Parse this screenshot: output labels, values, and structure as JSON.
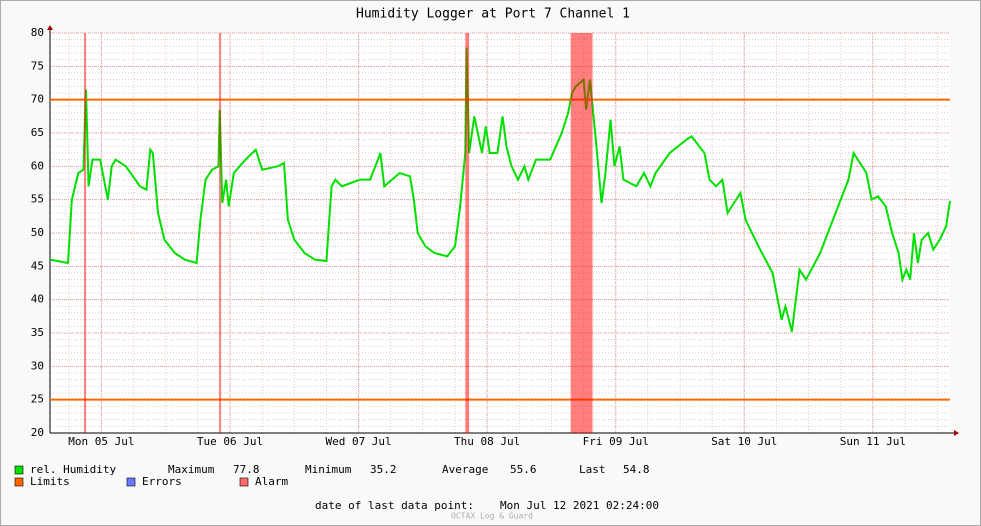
{
  "chart_data": {
    "type": "line",
    "title": "Humidity Logger at Port 7 Channel 1",
    "xlim": [
      5.1,
      12.1
    ],
    "xticks": [
      {
        "value": 5.5,
        "label": "Mon 05 Jul"
      },
      {
        "value": 6.5,
        "label": "Tue 06 Jul"
      },
      {
        "value": 7.5,
        "label": "Wed 07 Jul"
      },
      {
        "value": 8.5,
        "label": "Thu 08 Jul"
      },
      {
        "value": 9.5,
        "label": "Fri 09 Jul"
      },
      {
        "value": 10.5,
        "label": "Sat 10 Jul"
      },
      {
        "value": 11.5,
        "label": "Sun 11 Jul"
      }
    ],
    "ylim": [
      20,
      80
    ],
    "yticks": [
      20,
      25,
      30,
      35,
      40,
      45,
      50,
      55,
      60,
      65,
      70,
      75,
      80
    ],
    "grid": true,
    "series": [
      {
        "name": "rel. Humidity",
        "color": "#00e000",
        "x": [
          5.1,
          5.24,
          5.27,
          5.32,
          5.36,
          5.38,
          5.4,
          5.43,
          5.49,
          5.55,
          5.58,
          5.61,
          5.69,
          5.8,
          5.85,
          5.88,
          5.9,
          5.94,
          5.99,
          6.07,
          6.15,
          6.24,
          6.27,
          6.31,
          6.36,
          6.41,
          6.42,
          6.44,
          6.47,
          6.49,
          6.53,
          6.62,
          6.7,
          6.75,
          6.87,
          6.92,
          6.95,
          7.0,
          7.08,
          7.16,
          7.25,
          7.29,
          7.32,
          7.37,
          7.51,
          7.59,
          7.67,
          7.7,
          7.76,
          7.82,
          7.9,
          7.93,
          7.96,
          8.02,
          8.09,
          8.19,
          8.25,
          8.29,
          8.32,
          8.33,
          8.34,
          8.36,
          8.4,
          8.46,
          8.49,
          8.52,
          8.58,
          8.62,
          8.65,
          8.69,
          8.74,
          8.79,
          8.82,
          8.88,
          8.99,
          9.08,
          9.13,
          9.16,
          9.19,
          9.25,
          9.27,
          9.3,
          9.32,
          9.35,
          9.39,
          9.42,
          9.46,
          9.49,
          9.53,
          9.56,
          9.66,
          9.72,
          9.77,
          9.81,
          9.92,
          10.05,
          10.09,
          10.19,
          10.23,
          10.28,
          10.33,
          10.37,
          10.47,
          10.51,
          10.61,
          10.72,
          10.76,
          10.79,
          10.82,
          10.87,
          10.93,
          10.98,
          11.09,
          11.21,
          11.31,
          11.35,
          11.45,
          11.49,
          11.54,
          11.6,
          11.65,
          11.7,
          11.73,
          11.76,
          11.79,
          11.82,
          11.85,
          11.88,
          11.93,
          11.97,
          12.02,
          12.07,
          12.1
        ],
        "values": [
          46,
          45.5,
          55,
          59,
          59.5,
          71.5,
          57,
          61,
          61,
          55,
          60,
          61,
          60,
          57,
          56.5,
          62.5,
          62,
          53,
          49,
          47,
          46,
          45.5,
          52,
          58,
          59.5,
          60,
          68.5,
          54.5,
          58,
          54,
          59,
          61,
          62.5,
          59.5,
          60,
          60.5,
          52,
          49,
          47,
          46,
          45.8,
          57,
          58,
          57,
          58,
          58,
          62,
          57,
          58,
          59,
          58.5,
          55,
          50,
          48,
          47,
          46.5,
          48,
          54,
          60,
          62,
          77.8,
          62,
          67.5,
          62,
          66,
          62,
          62,
          67.5,
          63,
          60,
          58,
          60,
          58,
          61,
          61,
          65,
          68,
          71,
          72,
          73,
          68.5,
          73,
          69,
          63,
          54.5,
          59,
          67,
          60,
          63,
          58,
          57,
          59,
          57,
          59,
          62,
          64,
          64.5,
          62,
          58,
          57,
          58,
          53,
          56,
          52,
          48,
          44,
          40,
          37,
          39,
          35.2,
          44.5,
          43,
          47,
          53,
          58,
          62,
          59,
          55,
          55.5,
          54,
          50,
          47,
          43,
          44.5,
          43,
          50,
          45.5,
          49,
          50,
          47.5,
          49,
          51,
          54.8
        ]
      }
    ],
    "limits": {
      "name": "Limits",
      "color": "#ff6600",
      "values": [
        70,
        25
      ]
    },
    "errors": {
      "name": "Errors",
      "color": "#6b7bff"
    },
    "alarm": {
      "name": "Alarm",
      "color": "#ff6a6a",
      "periods": [
        [
          5.365,
          5.38
        ],
        [
          6.415,
          6.43
        ],
        [
          8.33,
          8.36
        ],
        [
          9.15,
          9.32
        ]
      ]
    },
    "stats": [
      {
        "label": "Maximum",
        "value": 77.8
      },
      {
        "label": "Minimum",
        "value": 35.2
      },
      {
        "label": "Average",
        "value": 55.6
      },
      {
        "label": "Last",
        "value": 54.8
      }
    ],
    "footer": {
      "label": "date of last data point:",
      "value": "Mon Jul 12 2021 02:24:00"
    },
    "watermark": "OCTAX Log & Guard"
  }
}
